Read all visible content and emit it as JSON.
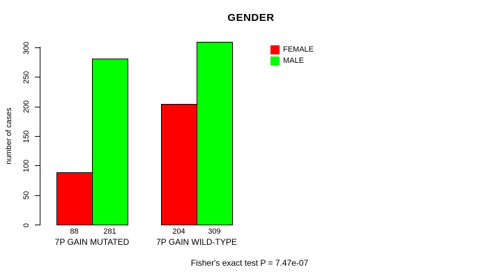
{
  "chart_data": {
    "type": "bar",
    "title": "GENDER",
    "ylabel": "number of cases",
    "xlabel": "",
    "categories": [
      "7P GAIN MUTATED",
      "7P GAIN WILD-TYPE"
    ],
    "series": [
      {
        "name": "FEMALE",
        "color": "#ff0000",
        "values": [
          88,
          204
        ]
      },
      {
        "name": "MALE",
        "color": "#00ff00",
        "values": [
          281,
          309
        ]
      }
    ],
    "ylim": [
      0,
      300
    ],
    "yticks": [
      0,
      50,
      100,
      150,
      200,
      250,
      300
    ],
    "grid": false,
    "legend_position": "top-right",
    "bar_value_labels_shown": true,
    "footer": "Fisher's exact test P = 7.47e-07"
  }
}
